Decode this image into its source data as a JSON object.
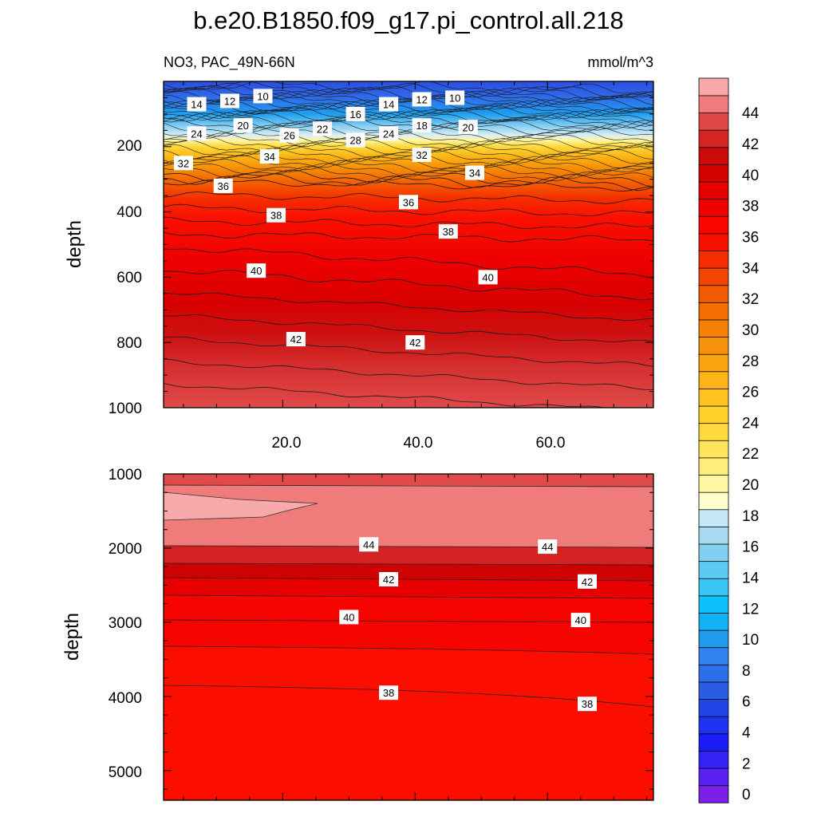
{
  "title": "b.e20.B1850.f09_g17.pi_control.all.218",
  "chart_data": {
    "type": "heatmap",
    "variable_label": "NO3, PAC_49N-66N",
    "units_label": "mmol/m^3",
    "x_range": [
      2,
      76
    ],
    "x_ticks": [
      "20.0",
      "40.0",
      "60.0"
    ],
    "upper_panel": {
      "ylabel": "depth",
      "ylim": [
        1000,
        0
      ],
      "y_ticks": [
        "200",
        "400",
        "600",
        "800",
        "1000"
      ],
      "contour_labels": [
        {
          "v": "14",
          "x": 7,
          "d": 70
        },
        {
          "v": "12",
          "x": 12,
          "d": 60
        },
        {
          "v": "10",
          "x": 17,
          "d": 45
        },
        {
          "v": "16",
          "x": 31,
          "d": 100
        },
        {
          "v": "14",
          "x": 36,
          "d": 70
        },
        {
          "v": "12",
          "x": 41,
          "d": 55
        },
        {
          "v": "10",
          "x": 46,
          "d": 50
        },
        {
          "v": "20",
          "x": 14,
          "d": 135
        },
        {
          "v": "24",
          "x": 7,
          "d": 160
        },
        {
          "v": "26",
          "x": 21,
          "d": 165
        },
        {
          "v": "22",
          "x": 26,
          "d": 145
        },
        {
          "v": "28",
          "x": 31,
          "d": 180
        },
        {
          "v": "24",
          "x": 36,
          "d": 160
        },
        {
          "v": "18",
          "x": 41,
          "d": 135
        },
        {
          "v": "20",
          "x": 48,
          "d": 140
        },
        {
          "v": "32",
          "x": 5,
          "d": 250
        },
        {
          "v": "34",
          "x": 18,
          "d": 230
        },
        {
          "v": "32",
          "x": 41,
          "d": 225
        },
        {
          "v": "34",
          "x": 49,
          "d": 280
        },
        {
          "v": "36",
          "x": 11,
          "d": 320
        },
        {
          "v": "36",
          "x": 39,
          "d": 370
        },
        {
          "v": "38",
          "x": 19,
          "d": 410
        },
        {
          "v": "38",
          "x": 45,
          "d": 460
        },
        {
          "v": "40",
          "x": 16,
          "d": 580
        },
        {
          "v": "40",
          "x": 51,
          "d": 600
        },
        {
          "v": "42",
          "x": 22,
          "d": 790
        },
        {
          "v": "42",
          "x": 40,
          "d": 800
        }
      ]
    },
    "lower_panel": {
      "ylabel": "depth",
      "ylim": [
        5400,
        1000
      ],
      "y_ticks": [
        "1000",
        "2000",
        "3000",
        "4000",
        "5000"
      ],
      "contour_labels": [
        {
          "v": "44",
          "x": 33,
          "d": 1950
        },
        {
          "v": "44",
          "x": 60,
          "d": 1980
        },
        {
          "v": "42",
          "x": 36,
          "d": 2420
        },
        {
          "v": "42",
          "x": 66,
          "d": 2450
        },
        {
          "v": "40",
          "x": 30,
          "d": 2930
        },
        {
          "v": "40",
          "x": 65,
          "d": 2970
        },
        {
          "v": "38",
          "x": 36,
          "d": 3950
        },
        {
          "v": "38",
          "x": 66,
          "d": 4100
        }
      ]
    },
    "colorbar": {
      "labels": [
        "0",
        "2",
        "4",
        "6",
        "8",
        "10",
        "12",
        "14",
        "16",
        "18",
        "20",
        "22",
        "24",
        "26",
        "28",
        "30",
        "32",
        "34",
        "36",
        "38",
        "40",
        "42",
        "44"
      ],
      "colors": [
        "#7a1fe8",
        "#5a22f2",
        "#3523f5",
        "#1a1df7",
        "#1f34ef",
        "#2245e6",
        "#2a5ce5",
        "#2d6ee9",
        "#2f82ef",
        "#1f9aef",
        "#12b3f5",
        "#0bc0fb",
        "#39c6f4",
        "#5ec9f3",
        "#82d0f0",
        "#a7dbf1",
        "#c3e8f4",
        "#fefdcc",
        "#fff6a3",
        "#ffec7a",
        "#ffe55a",
        "#ffd93d",
        "#ffd12b",
        "#ffc41f",
        "#fdb414",
        "#faa30e",
        "#f79208",
        "#f58105",
        "#f36f03",
        "#f15b01",
        "#f24600",
        "#f52d00",
        "#f80f00",
        "#fb0500",
        "#f10000",
        "#e80000",
        "#d50000",
        "#cc0a0a",
        "#d42424",
        "#e04747",
        "#ef7b7b",
        "#f8a9a9"
      ]
    }
  }
}
